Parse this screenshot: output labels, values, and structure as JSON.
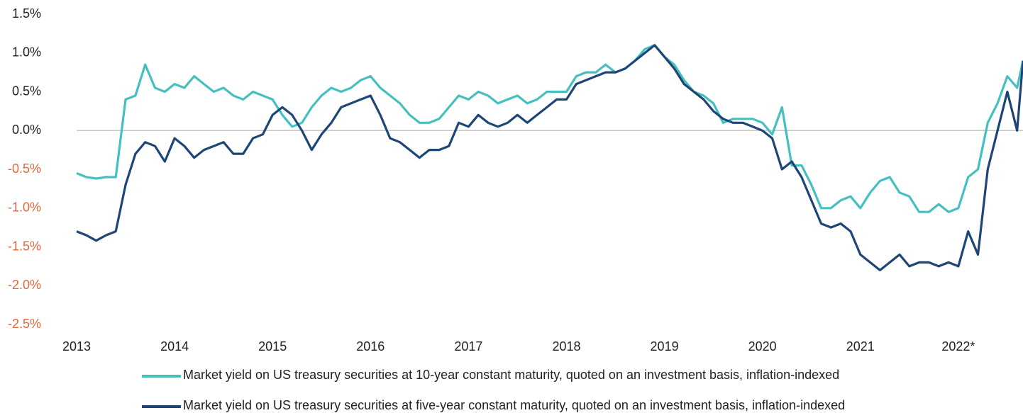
{
  "chart_data": {
    "type": "line",
    "x": [
      2013.0,
      2013.1,
      2013.2,
      2013.3,
      2013.4,
      2013.5,
      2013.6,
      2013.7,
      2013.8,
      2013.9,
      2014.0,
      2014.1,
      2014.2,
      2014.3,
      2014.4,
      2014.5,
      2014.6,
      2014.7,
      2014.8,
      2014.9,
      2015.0,
      2015.1,
      2015.2,
      2015.3,
      2015.4,
      2015.5,
      2015.6,
      2015.7,
      2015.8,
      2015.9,
      2016.0,
      2016.1,
      2016.2,
      2016.3,
      2016.4,
      2016.5,
      2016.6,
      2016.7,
      2016.8,
      2016.9,
      2017.0,
      2017.1,
      2017.2,
      2017.3,
      2017.4,
      2017.5,
      2017.6,
      2017.7,
      2017.8,
      2017.9,
      2018.0,
      2018.1,
      2018.2,
      2018.3,
      2018.4,
      2018.5,
      2018.6,
      2018.7,
      2018.8,
      2018.9,
      2019.0,
      2019.1,
      2019.2,
      2019.3,
      2019.4,
      2019.5,
      2019.6,
      2019.7,
      2019.8,
      2019.9,
      2020.0,
      2020.1,
      2020.2,
      2020.3,
      2020.4,
      2020.5,
      2020.6,
      2020.7,
      2020.8,
      2020.9,
      2021.0,
      2021.1,
      2021.2,
      2021.3,
      2021.4,
      2021.5,
      2021.6,
      2021.7,
      2021.8,
      2021.9,
      2022.0,
      2022.1,
      2022.2,
      2022.3,
      2022.4,
      2022.5,
      2022.6,
      2022.66
    ],
    "series": [
      {
        "name": "Market yield on US treasury securities at 10-year constant maturity, quoted on an investment basis, inflation-indexed",
        "color": "#45bfc0",
        "values": [
          -0.55,
          -0.6,
          -0.62,
          -0.6,
          -0.6,
          0.4,
          0.45,
          0.85,
          0.55,
          0.5,
          0.6,
          0.55,
          0.7,
          0.6,
          0.5,
          0.55,
          0.45,
          0.4,
          0.5,
          0.45,
          0.4,
          0.2,
          0.05,
          0.1,
          0.3,
          0.45,
          0.55,
          0.5,
          0.55,
          0.65,
          0.7,
          0.55,
          0.45,
          0.35,
          0.2,
          0.1,
          0.1,
          0.15,
          0.3,
          0.45,
          0.4,
          0.5,
          0.45,
          0.35,
          0.4,
          0.45,
          0.35,
          0.4,
          0.5,
          0.5,
          0.5,
          0.7,
          0.75,
          0.75,
          0.85,
          0.75,
          0.8,
          0.9,
          1.05,
          1.1,
          0.95,
          0.85,
          0.65,
          0.5,
          0.45,
          0.35,
          0.1,
          0.15,
          0.15,
          0.15,
          0.1,
          -0.05,
          0.3,
          -0.45,
          -0.45,
          -0.7,
          -1.0,
          -1.0,
          -0.9,
          -0.85,
          -1.0,
          -0.8,
          -0.65,
          -0.6,
          -0.8,
          -0.85,
          -1.05,
          -1.05,
          -0.95,
          -1.05,
          -1.0,
          -0.6,
          -0.5,
          0.1,
          0.35,
          0.7,
          0.55,
          0.9
        ]
      },
      {
        "name": "Market yield on US treasury securities at five-year constant maturity, quoted on an investment basis, inflation-indexed",
        "color": "#1d4677",
        "values": [
          -1.3,
          -1.35,
          -1.42,
          -1.35,
          -1.3,
          -0.7,
          -0.3,
          -0.15,
          -0.2,
          -0.4,
          -0.1,
          -0.2,
          -0.35,
          -0.25,
          -0.2,
          -0.15,
          -0.3,
          -0.3,
          -0.1,
          -0.05,
          0.2,
          0.3,
          0.2,
          0.0,
          -0.25,
          -0.05,
          0.1,
          0.3,
          0.35,
          0.4,
          0.45,
          0.2,
          -0.1,
          -0.15,
          -0.25,
          -0.35,
          -0.25,
          -0.25,
          -0.2,
          0.1,
          0.05,
          0.2,
          0.1,
          0.05,
          0.1,
          0.2,
          0.1,
          0.2,
          0.3,
          0.4,
          0.4,
          0.6,
          0.65,
          0.7,
          0.75,
          0.75,
          0.8,
          0.9,
          1.0,
          1.1,
          0.95,
          0.8,
          0.6,
          0.5,
          0.4,
          0.25,
          0.15,
          0.1,
          0.1,
          0.05,
          0.0,
          -0.1,
          -0.5,
          -0.4,
          -0.6,
          -0.9,
          -1.2,
          -1.25,
          -1.2,
          -1.3,
          -1.6,
          -1.7,
          -1.8,
          -1.7,
          -1.6,
          -1.75,
          -1.7,
          -1.7,
          -1.75,
          -1.7,
          -1.75,
          -1.3,
          -1.6,
          -0.5,
          0.0,
          0.5,
          0.0,
          0.9
        ]
      }
    ],
    "xlim": [
      2013,
      2022.66
    ],
    "xticks": [
      2013,
      2014,
      2015,
      2016,
      2017,
      2018,
      2019,
      2020,
      2021,
      {
        "value": 2022,
        "label": "2022*"
      }
    ],
    "ylim": [
      -2.5,
      1.5
    ],
    "yticks": [
      {
        "value": 1.5,
        "label": "1.5%"
      },
      {
        "value": 1.0,
        "label": "1.0%"
      },
      {
        "value": 0.5,
        "label": "0.5%"
      },
      {
        "value": 0.0,
        "label": "0.0%"
      },
      {
        "value": -0.5,
        "label": "-0.5%"
      },
      {
        "value": -1.0,
        "label": "-1.0%"
      },
      {
        "value": -1.5,
        "label": "-1.5%"
      },
      {
        "value": -2.0,
        "label": "-2.0%"
      },
      {
        "value": -2.5,
        "label": "-2.5%"
      }
    ],
    "negative_tick_color": "#e8663c",
    "legend": "bottom"
  }
}
